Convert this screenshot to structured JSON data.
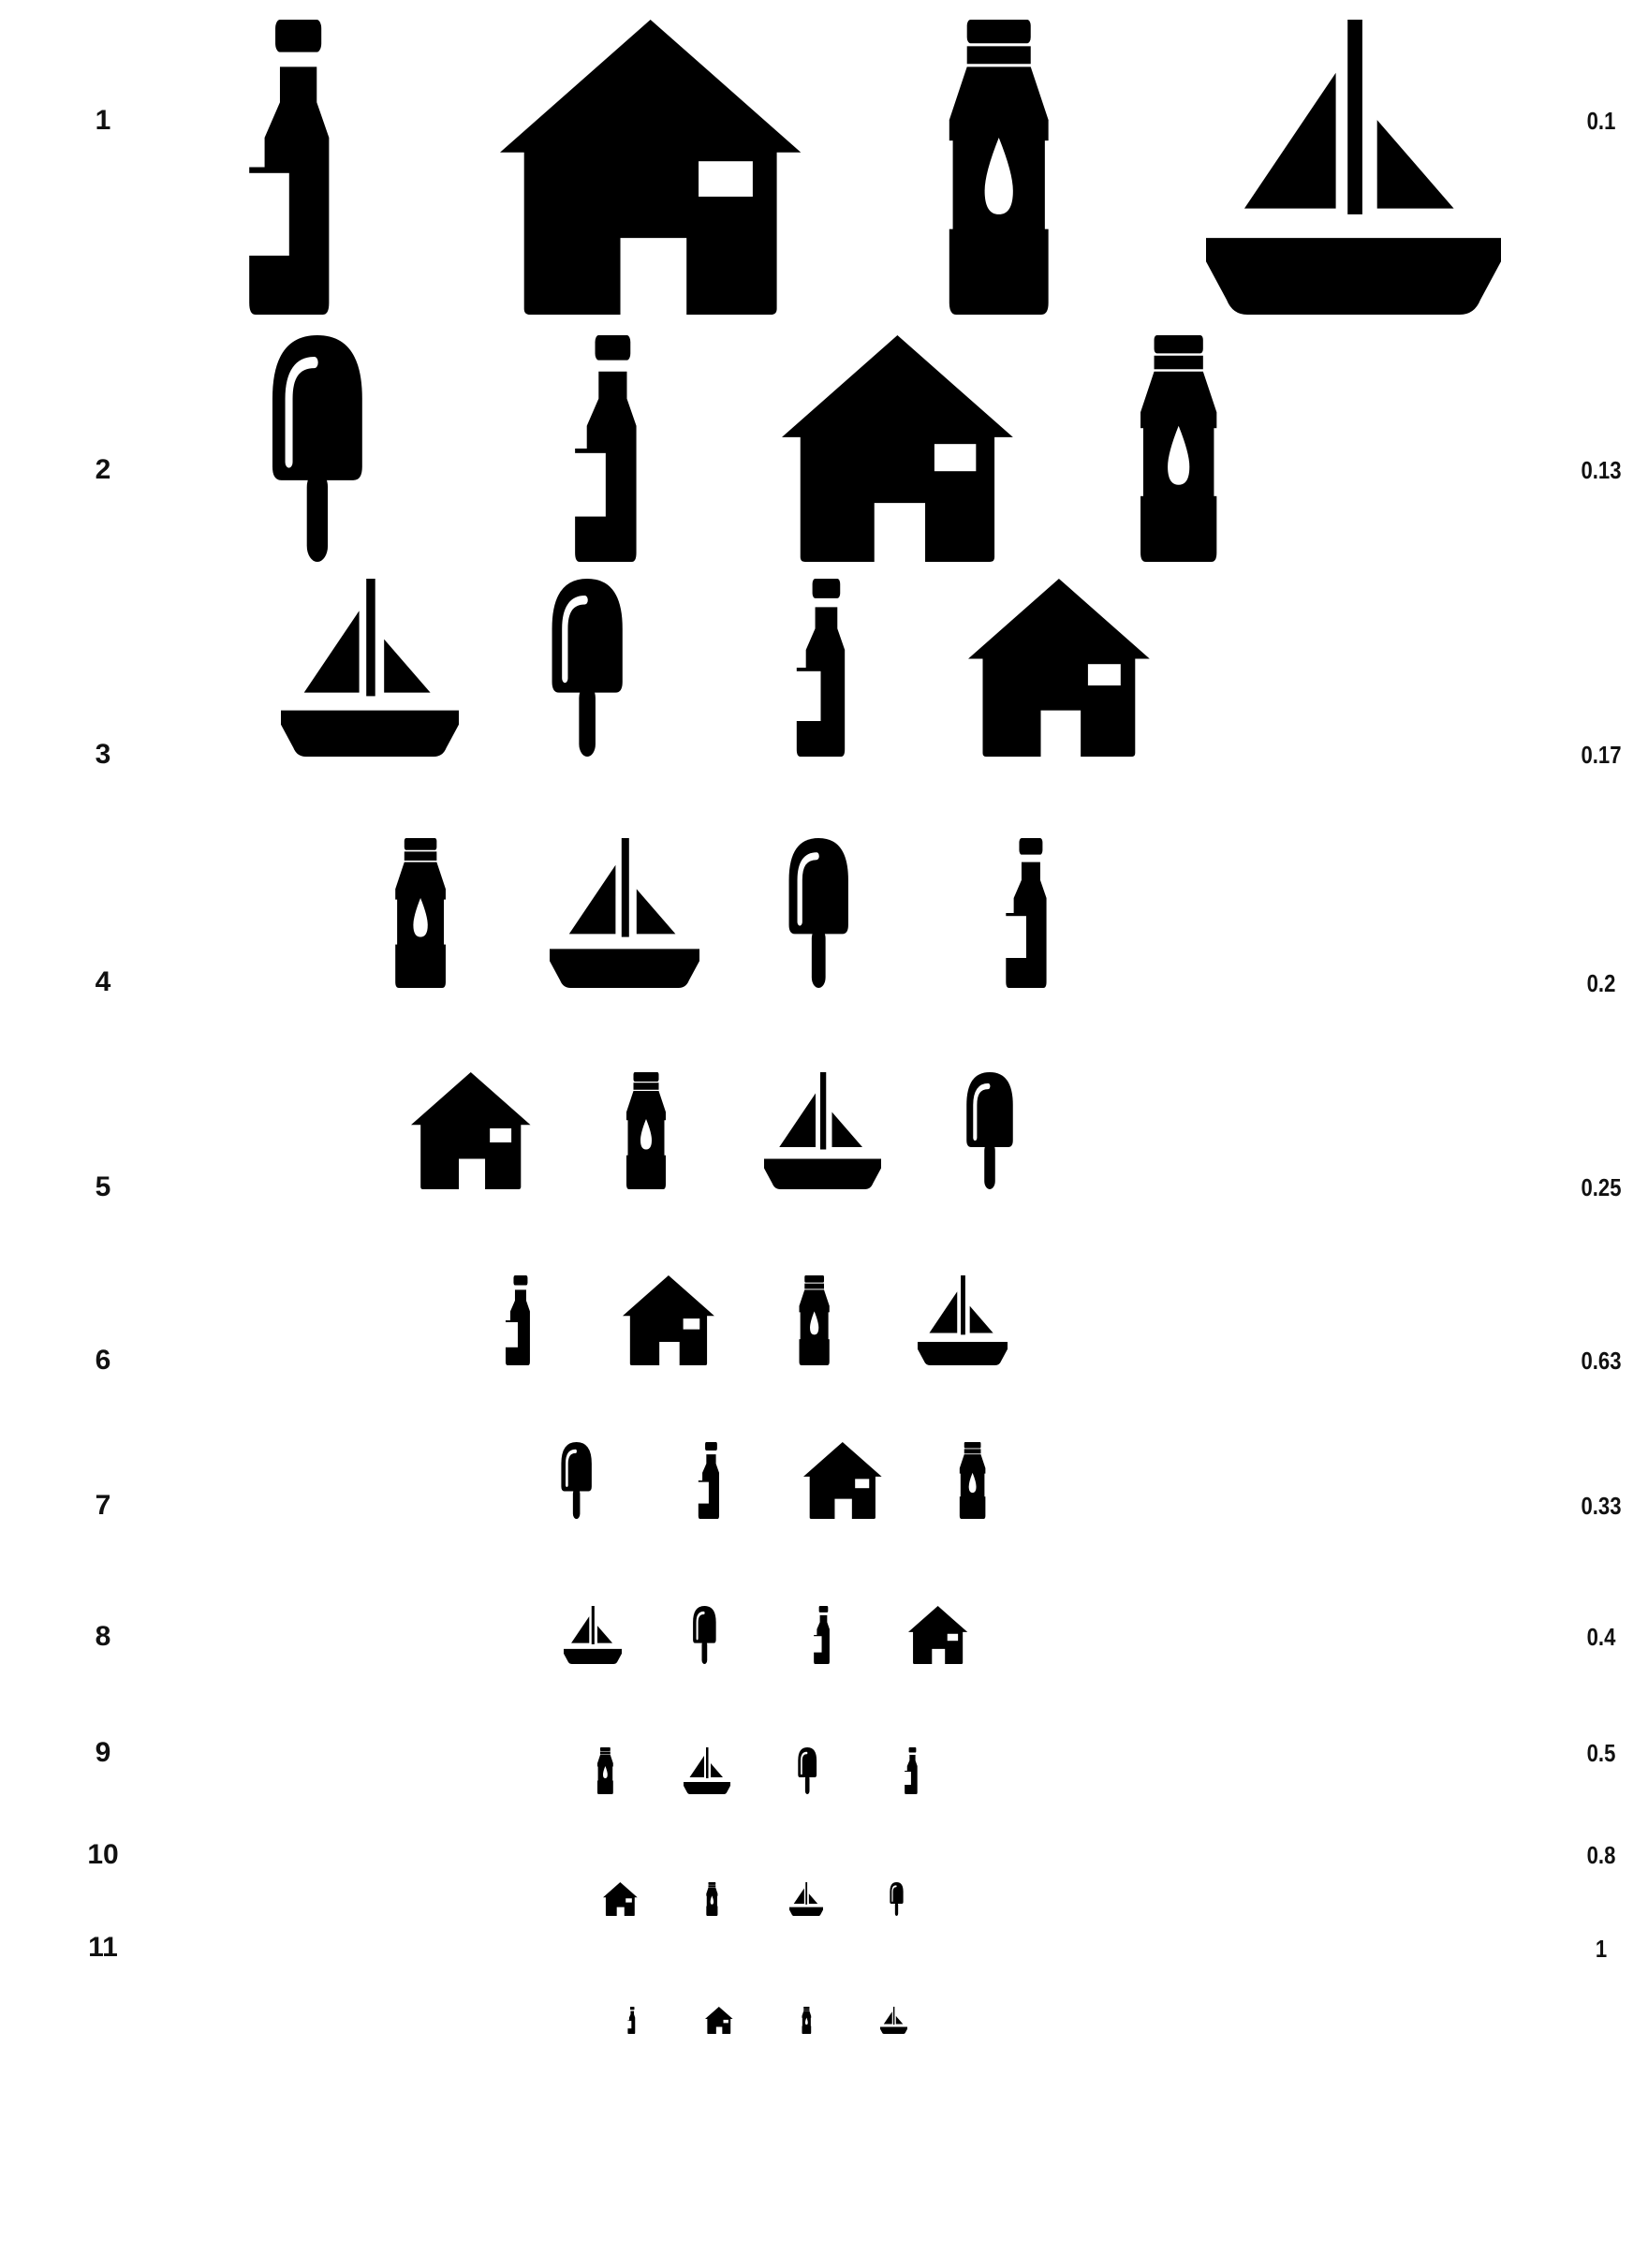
{
  "chart": {
    "symbol_color": "#000000",
    "background_color": "#ffffff",
    "symbol_types": [
      "wine-bottle-icon",
      "house-icon",
      "water-bottle-icon",
      "sailboat-icon",
      "popsicle-icon"
    ]
  },
  "rows": [
    {
      "number": "1",
      "acuity": "0.1",
      "symbols": [
        "wine-bottle",
        "house",
        "water-bottle",
        "sailboat"
      ]
    },
    {
      "number": "2",
      "acuity": "0.13",
      "symbols": [
        "popsicle",
        "wine-bottle",
        "house",
        "water-bottle"
      ]
    },
    {
      "number": "3",
      "acuity": "0.17",
      "symbols": [
        "sailboat",
        "popsicle",
        "wine-bottle",
        "house"
      ]
    },
    {
      "number": "4",
      "acuity": "0.2",
      "symbols": [
        "water-bottle",
        "sailboat",
        "popsicle",
        "wine-bottle"
      ]
    },
    {
      "number": "5",
      "acuity": "0.25",
      "symbols": [
        "house",
        "water-bottle",
        "sailboat",
        "popsicle"
      ]
    },
    {
      "number": "6",
      "acuity": "0.63",
      "symbols": [
        "wine-bottle",
        "house",
        "water-bottle",
        "sailboat"
      ]
    },
    {
      "number": "7",
      "acuity": "0.33",
      "symbols": [
        "popsicle",
        "wine-bottle",
        "house",
        "water-bottle"
      ]
    },
    {
      "number": "8",
      "acuity": "0.4",
      "symbols": [
        "sailboat",
        "popsicle",
        "wine-bottle",
        "house"
      ]
    },
    {
      "number": "9",
      "acuity": "0.5",
      "symbols": [
        "water-bottle",
        "sailboat",
        "popsicle",
        "wine-bottle"
      ]
    },
    {
      "number": "10",
      "acuity": "0.8",
      "symbols": [
        "house",
        "water-bottle",
        "sailboat",
        "popsicle"
      ]
    },
    {
      "number": "11",
      "acuity": "1",
      "symbols": [
        "wine-bottle",
        "house",
        "water-bottle",
        "sailboat"
      ]
    }
  ]
}
